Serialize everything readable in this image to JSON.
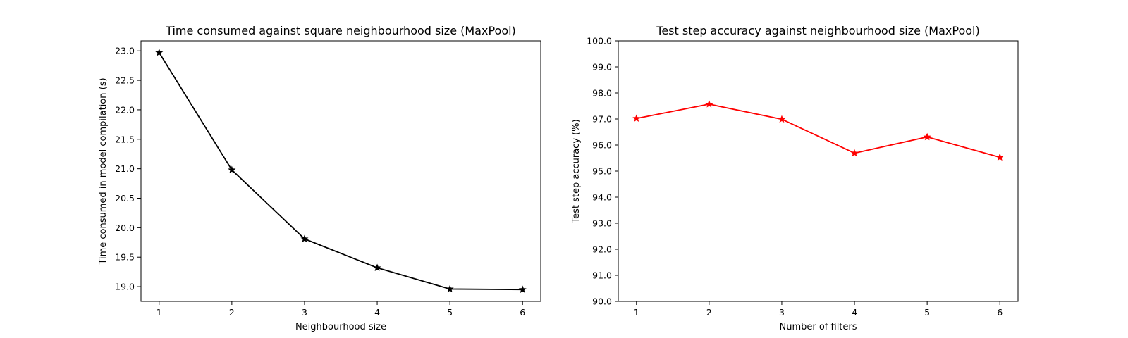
{
  "chart_data": [
    {
      "type": "line",
      "title": "Time consumed against square neighbourhood size (MaxPool)",
      "xlabel": "Neighbourhood size",
      "ylabel": "Time consumed in model compilation (s)",
      "x": [
        1,
        2,
        3,
        4,
        5,
        6
      ],
      "series": [
        {
          "values": [
            22.97,
            20.98,
            19.81,
            19.32,
            18.96,
            18.95
          ],
          "color": "#000000",
          "marker": "star"
        }
      ],
      "xticks": [
        1,
        2,
        3,
        4,
        5,
        6
      ],
      "xtick_labels": [
        "1",
        "2",
        "3",
        "4",
        "5",
        "6"
      ],
      "xlim": [
        0.75,
        6.25
      ],
      "yticks": [
        19.0,
        19.5,
        20.0,
        20.5,
        21.0,
        21.5,
        22.0,
        22.5,
        23.0
      ],
      "ytick_labels": [
        "19.0",
        "19.5",
        "20.0",
        "20.5",
        "21.0",
        "21.5",
        "22.0",
        "22.5",
        "23.0"
      ],
      "ylim": [
        18.75,
        23.17
      ],
      "grid": false
    },
    {
      "type": "line",
      "title": "Test step accuracy against neighbourhood size (MaxPool)",
      "xlabel": "Number of filters",
      "ylabel": "Test step accuracy (%)",
      "x": [
        1,
        2,
        3,
        4,
        5,
        6
      ],
      "series": [
        {
          "values": [
            97.02,
            97.57,
            96.99,
            95.69,
            96.31,
            95.53
          ],
          "color": "#ff0000",
          "marker": "star"
        }
      ],
      "xticks": [
        1,
        2,
        3,
        4,
        5,
        6
      ],
      "xtick_labels": [
        "1",
        "2",
        "3",
        "4",
        "5",
        "6"
      ],
      "xlim": [
        0.75,
        6.25
      ],
      "yticks": [
        90.0,
        91.0,
        92.0,
        93.0,
        94.0,
        95.0,
        96.0,
        97.0,
        98.0,
        99.0,
        100.0
      ],
      "ytick_labels": [
        "90.0",
        "91.0",
        "92.0",
        "93.0",
        "94.0",
        "95.0",
        "96.0",
        "97.0",
        "98.0",
        "99.0",
        "100.0"
      ],
      "ylim": [
        90.0,
        100.0
      ],
      "grid": false
    }
  ]
}
